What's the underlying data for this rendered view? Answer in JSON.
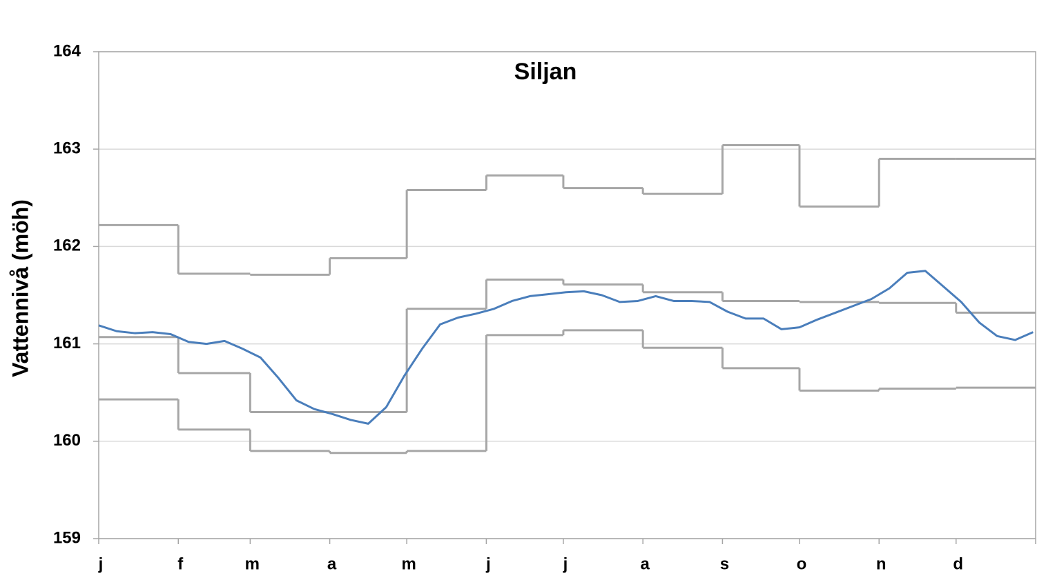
{
  "chart_data": {
    "type": "line",
    "title": "Siljan",
    "y_label": "Vattennivå (möh)",
    "xlim": [
      0,
      365
    ],
    "ylim": [
      159,
      164
    ],
    "xticks": [
      {
        "value": 0,
        "label": "j"
      },
      {
        "value": 31,
        "label": "f"
      },
      {
        "value": 59,
        "label": "m"
      },
      {
        "value": 90,
        "label": "a"
      },
      {
        "value": 120,
        "label": "m"
      },
      {
        "value": 151,
        "label": "j"
      },
      {
        "value": 181,
        "label": "j"
      },
      {
        "value": 212,
        "label": "a"
      },
      {
        "value": 243,
        "label": "s"
      },
      {
        "value": 273,
        "label": "o"
      },
      {
        "value": 304,
        "label": "n"
      },
      {
        "value": 334,
        "label": "d"
      }
    ],
    "yticks": [
      159,
      160,
      161,
      162,
      163,
      164
    ],
    "grid": true,
    "series": [
      {
        "color": "#a6a6a6",
        "step": true,
        "x": [
          0,
          31,
          59,
          90,
          120,
          151,
          181,
          212,
          243,
          273,
          304,
          334
        ],
        "values": [
          162.22,
          161.72,
          161.71,
          161.88,
          162.58,
          162.73,
          162.6,
          162.54,
          163.04,
          162.41,
          162.9,
          162.9
        ]
      },
      {
        "color": "#a6a6a6",
        "step": true,
        "x": [
          0,
          31,
          59,
          90,
          120,
          151,
          181,
          212,
          243,
          273,
          304,
          334
        ],
        "values": [
          161.07,
          160.7,
          160.3,
          160.3,
          161.36,
          161.66,
          161.61,
          161.53,
          161.44,
          161.43,
          161.42,
          161.32
        ]
      },
      {
        "color": "#a6a6a6",
        "step": true,
        "x": [
          0,
          31,
          59,
          90,
          120,
          151,
          181,
          212,
          243,
          273,
          304,
          334
        ],
        "values": [
          160.43,
          160.12,
          159.9,
          159.88,
          159.9,
          161.09,
          161.14,
          160.96,
          160.75,
          160.52,
          160.54,
          160.55
        ]
      },
      {
        "color": "#4a7ebb",
        "step": false,
        "x": [
          0,
          7,
          14,
          21,
          28,
          35,
          42,
          49,
          56,
          63,
          70,
          77,
          84,
          91,
          98,
          105,
          112,
          119,
          126,
          133,
          140,
          147,
          154,
          161,
          168,
          175,
          182,
          189,
          196,
          203,
          210,
          217,
          224,
          231,
          238,
          245,
          252,
          259,
          266,
          273,
          280,
          287,
          294,
          301,
          308,
          315,
          322,
          329,
          336,
          343,
          350,
          357,
          364
        ],
        "values": [
          161.19,
          161.13,
          161.11,
          161.12,
          161.1,
          161.02,
          161.0,
          161.03,
          160.95,
          160.86,
          160.65,
          160.42,
          160.33,
          160.28,
          160.22,
          160.18,
          160.35,
          160.67,
          160.95,
          161.2,
          161.27,
          161.31,
          161.36,
          161.44,
          161.49,
          161.51,
          161.53,
          161.54,
          161.5,
          161.43,
          161.44,
          161.49,
          161.44,
          161.44,
          161.43,
          161.33,
          161.26,
          161.26,
          161.15,
          161.17,
          161.25,
          161.32,
          161.39,
          161.46,
          161.57,
          161.73,
          161.75,
          161.59,
          161.43,
          161.22,
          161.08,
          161.04,
          161.12
        ]
      }
    ]
  }
}
